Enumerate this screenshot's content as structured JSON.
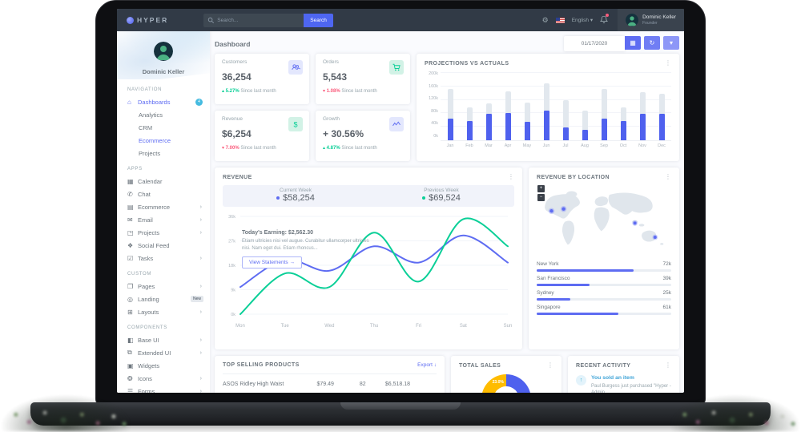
{
  "colors": {
    "primary": "#5e6cf2",
    "bar_blue": "#4f61ee",
    "green": "#0acf97",
    "red": "#fa5c7c",
    "yellow": "#ffbc00",
    "topbar": "#313a46",
    "badge_info": "#45bbe0",
    "bar_gray": "#e2e8ee",
    "donut_gray": "#e6ebf0"
  },
  "topbar": {
    "logo": "HYPER",
    "search_placeholder": "Search...",
    "search_button": "Search",
    "language": "English",
    "user": {
      "name": "Dominic Keller",
      "role": "Founder"
    },
    "icons": [
      "settings-gear-icon",
      "us-flag-icon",
      "notifications-bell-icon"
    ]
  },
  "sidebar": {
    "profile_name": "Dominic Keller",
    "sections": [
      {
        "label": "NAVIGATION",
        "items": [
          {
            "label": "Dashboards",
            "icon": "home-icon",
            "glyph": "⌂",
            "badge": "4",
            "active": true
          },
          {
            "label": "Analytics",
            "child": true
          },
          {
            "label": "CRM",
            "child": true
          },
          {
            "label": "Ecommerce",
            "child": true,
            "active": true
          },
          {
            "label": "Projects",
            "child": true
          }
        ]
      },
      {
        "label": "APPS",
        "items": [
          {
            "label": "Calendar",
            "icon": "calendar-icon",
            "glyph": "▦"
          },
          {
            "label": "Chat",
            "icon": "chat-icon",
            "glyph": "✆"
          },
          {
            "label": "Ecommerce",
            "icon": "ecommerce-icon",
            "glyph": "▤",
            "chevron": true
          },
          {
            "label": "Email",
            "icon": "email-icon",
            "glyph": "✉",
            "chevron": true
          },
          {
            "label": "Projects",
            "icon": "projects-icon",
            "glyph": "◳",
            "chevron": true
          },
          {
            "label": "Social Feed",
            "icon": "social-feed-icon",
            "glyph": "❖"
          },
          {
            "label": "Tasks",
            "icon": "tasks-icon",
            "glyph": "☑",
            "chevron": true
          }
        ]
      },
      {
        "label": "CUSTOM",
        "items": [
          {
            "label": "Pages",
            "icon": "pages-icon",
            "glyph": "❐",
            "chevron": true
          },
          {
            "label": "Landing",
            "icon": "landing-icon",
            "glyph": "◎",
            "pill": "New"
          },
          {
            "label": "Layouts",
            "icon": "layouts-icon",
            "glyph": "⊞",
            "chevron": true
          }
        ]
      },
      {
        "label": "COMPONENTS",
        "items": [
          {
            "label": "Base UI",
            "icon": "base-ui-icon",
            "glyph": "◧",
            "chevron": true
          },
          {
            "label": "Extended UI",
            "icon": "extended-ui-icon",
            "glyph": "⧉",
            "chevron": true
          },
          {
            "label": "Widgets",
            "icon": "widgets-icon",
            "glyph": "▣"
          },
          {
            "label": "Icons",
            "icon": "icons-icon",
            "glyph": "❂",
            "chevron": true
          },
          {
            "label": "Forms",
            "icon": "forms-icon",
            "glyph": "☰",
            "chevron": true
          }
        ]
      }
    ]
  },
  "header": {
    "page_title": "Dashboard",
    "date_value": "01/17/2020",
    "buttons": [
      "calendar-button",
      "refresh-button",
      "period-dropdown-button"
    ]
  },
  "stats": [
    {
      "title": "Customers",
      "value": "36,254",
      "delta": "5.27%",
      "delta_dir": "up",
      "note": "Since last month",
      "icon": "users-icon",
      "tile": "indigo"
    },
    {
      "title": "Orders",
      "value": "5,543",
      "delta": "1.08%",
      "delta_dir": "down",
      "note": "Since last month",
      "icon": "cart-icon",
      "tile": "green"
    },
    {
      "title": "Revenue",
      "value": "$6,254",
      "delta": "7.00%",
      "delta_dir": "down",
      "note": "Since last month",
      "icon": "dollar-icon",
      "tile": "green"
    },
    {
      "title": "Growth",
      "value": "+ 30.56%",
      "delta": "4.87%",
      "delta_dir": "up",
      "note": "Since last month",
      "icon": "activity-icon",
      "tile": "indigo"
    }
  ],
  "revenue_card": {
    "title": "REVENUE",
    "current_week_label": "Current Week",
    "current_week_value": "$58,254",
    "previous_week_label": "Previous Week",
    "previous_week_value": "$69,524",
    "today_earning": "Today's Earning: $2,562.30",
    "description": "Etiam ultricies nisi vel augue. Curabitur ullamcorper ultricies nisi. Nam eget dui. Etiam rhoncus...",
    "button_label": "View Statements",
    "button_arrow": "→"
  },
  "location_card": {
    "title": "REVENUE BY LOCATION"
  },
  "products_card": {
    "title": "TOP SELLING PRODUCTS",
    "export_label": "Export",
    "export_icon": "download-icon",
    "rows": [
      {
        "name": "ASOS Ridley High Waist",
        "price": "$79.49",
        "quantity": "82",
        "amount": "$6,518.18"
      }
    ]
  },
  "sales_card": {
    "title": "TOTAL SALES"
  },
  "activity_card": {
    "title": "RECENT ACTIVITY",
    "items": [
      {
        "icon": "sold-item-icon",
        "glyph": "↑",
        "title": "You sold an item",
        "desc": "Paul Burgess just purchased \"Hyper - Admin"
      }
    ]
  },
  "chart_data": [
    {
      "id": "projections_vs_actuals",
      "type": "bar",
      "title": "PROJECTIONS VS ACTUALS",
      "categories": [
        "Jan",
        "Feb",
        "Mar",
        "Apr",
        "May",
        "Jun",
        "Jul",
        "Aug",
        "Sep",
        "Oct",
        "Nov",
        "Dec"
      ],
      "series": [
        {
          "name": "Actual",
          "color": "#4f61ee",
          "values": [
            65,
            57,
            78,
            80,
            54,
            87,
            39,
            30,
            64,
            57,
            78,
            79
          ]
        },
        {
          "name": "Projection",
          "color": "#e2e8ee",
          "values": [
            87,
            40,
            32,
            65,
            59,
            81,
            81,
            57,
            88,
            40,
            65,
            59
          ]
        }
      ],
      "stacked": true,
      "ylim": [
        0,
        200
      ],
      "yticks": [
        "200k",
        "160k",
        "120k",
        "80k",
        "40k",
        "0k"
      ],
      "grid": true,
      "legend": "none"
    },
    {
      "id": "revenue_weekly",
      "type": "line",
      "title": "REVENUE",
      "x": [
        "Mon",
        "Tue",
        "Wed",
        "Thu",
        "Fri",
        "Sat",
        "Sun"
      ],
      "series": [
        {
          "name": "Current Week",
          "color": "#5e6cf2",
          "values": [
            10,
            20,
            16,
            25,
            19,
            29,
            19
          ]
        },
        {
          "name": "Previous Week",
          "color": "#0acf97",
          "values": [
            0,
            15,
            10,
            30,
            12,
            35,
            25
          ]
        }
      ],
      "ylim": [
        0,
        36
      ],
      "yticks": [
        "0k",
        "9k",
        "18k",
        "27k",
        "36k"
      ],
      "grid": true,
      "legend": "top-values"
    },
    {
      "id": "revenue_by_location",
      "type": "bar",
      "title": "REVENUE BY LOCATION",
      "items": [
        {
          "label": "New York",
          "value": "72k",
          "percent": 72
        },
        {
          "label": "San Francisco",
          "value": "39k",
          "percent": 39
        },
        {
          "label": "Sydney",
          "value": "25k",
          "percent": 25
        },
        {
          "label": "Singapore",
          "value": "61k",
          "percent": 61
        }
      ]
    },
    {
      "id": "total_sales",
      "type": "pie",
      "title": "TOTAL SALES",
      "segments": [
        {
          "color": "#4f61ee",
          "percent": 29,
          "label": "29.0%"
        },
        {
          "color": "#e6ebf0",
          "percent": 30,
          "label": ""
        },
        {
          "color": "#fa5c7c",
          "percent": 18,
          "label": ""
        },
        {
          "color": "#ffbc00",
          "percent": 23,
          "label": "23.0%"
        }
      ]
    }
  ]
}
